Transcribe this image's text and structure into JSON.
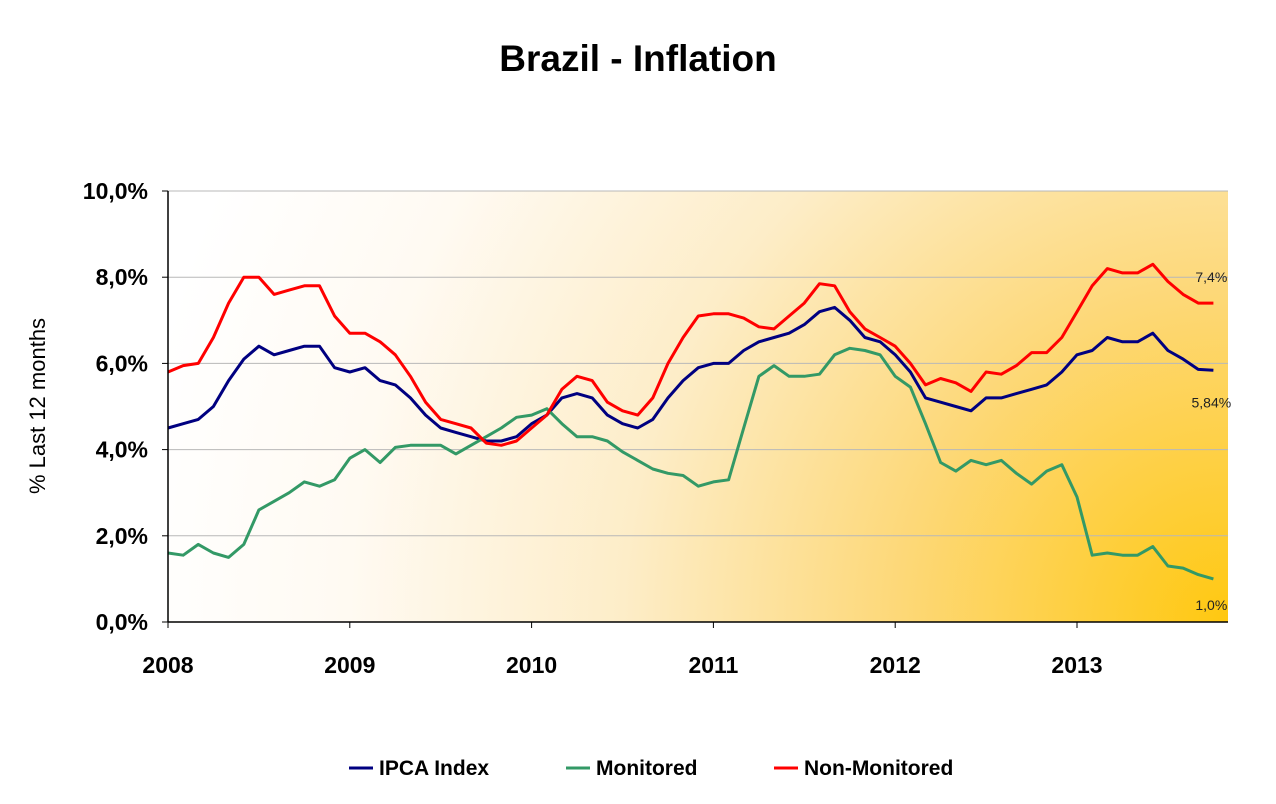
{
  "chart_data": {
    "type": "line",
    "title": "Brazil - Inflation",
    "xlabel": "",
    "ylabel": "% Last 12 months",
    "x_start": "2008-01",
    "x_end": "2013-10",
    "x_frequency": "monthly",
    "x_tick_labels": [
      "2008",
      "2009",
      "2010",
      "2011",
      "2012",
      "2013"
    ],
    "y_tick_labels": [
      "0,0%",
      "2,0%",
      "4,0%",
      "6,0%",
      "8,0%",
      "10,0%"
    ],
    "ylim": [
      0,
      10
    ],
    "grid": "horizontal",
    "legend_position": "bottom",
    "background": "gradient white to gold toward bottom-right",
    "series": [
      {
        "name": "IPCA Index",
        "color": "#000080",
        "values": [
          4.5,
          4.6,
          4.7,
          5.0,
          5.6,
          6.1,
          6.4,
          6.2,
          6.3,
          6.4,
          6.4,
          5.9,
          5.8,
          5.9,
          5.6,
          5.5,
          5.2,
          4.8,
          4.5,
          4.4,
          4.3,
          4.2,
          4.2,
          4.3,
          4.6,
          4.8,
          5.2,
          5.3,
          5.2,
          4.8,
          4.6,
          4.5,
          4.7,
          5.2,
          5.6,
          5.9,
          6.0,
          6.0,
          6.3,
          6.5,
          6.6,
          6.7,
          6.9,
          7.2,
          7.3,
          7.0,
          6.6,
          6.5,
          6.2,
          5.8,
          5.2,
          5.1,
          5.0,
          4.9,
          5.2,
          5.2,
          5.3,
          5.4,
          5.5,
          5.8,
          6.2,
          6.3,
          6.6,
          6.5,
          6.5,
          6.7,
          6.3,
          6.1,
          5.86,
          5.84
        ]
      },
      {
        "name": "Monitored",
        "color": "#339966",
        "values": [
          1.6,
          1.55,
          1.8,
          1.6,
          1.5,
          1.8,
          2.6,
          2.8,
          3.0,
          3.25,
          3.15,
          3.3,
          3.8,
          4.0,
          3.7,
          4.05,
          4.1,
          4.1,
          4.1,
          3.9,
          4.1,
          4.3,
          4.5,
          4.75,
          4.8,
          4.95,
          4.6,
          4.3,
          4.3,
          4.2,
          3.95,
          3.75,
          3.55,
          3.45,
          3.4,
          3.15,
          3.25,
          3.3,
          4.5,
          5.7,
          5.95,
          5.7,
          5.7,
          5.75,
          6.2,
          6.35,
          6.3,
          6.2,
          5.7,
          5.45,
          4.6,
          3.7,
          3.5,
          3.75,
          3.65,
          3.75,
          3.45,
          3.2,
          3.5,
          3.65,
          2.9,
          1.55,
          1.6,
          1.55,
          1.55,
          1.75,
          1.3,
          1.25,
          1.1,
          1.0
        ]
      },
      {
        "name": "Non-Monitored",
        "color": "#ff0000",
        "values": [
          5.8,
          5.95,
          6.0,
          6.6,
          7.4,
          8.0,
          8.0,
          7.6,
          7.7,
          7.8,
          7.8,
          7.1,
          6.7,
          6.7,
          6.5,
          6.2,
          5.7,
          5.1,
          4.7,
          4.6,
          4.5,
          4.15,
          4.1,
          4.2,
          4.5,
          4.8,
          5.4,
          5.7,
          5.6,
          5.1,
          4.9,
          4.8,
          5.2,
          6.0,
          6.6,
          7.1,
          7.15,
          7.15,
          7.05,
          6.85,
          6.8,
          7.1,
          7.4,
          7.85,
          7.8,
          7.2,
          6.8,
          6.6,
          6.4,
          6.0,
          5.5,
          5.65,
          5.55,
          5.35,
          5.8,
          5.75,
          5.95,
          6.25,
          6.25,
          6.6,
          7.2,
          7.8,
          8.2,
          8.1,
          8.1,
          8.3,
          7.9,
          7.6,
          7.4,
          7.4
        ]
      }
    ],
    "annotations": [
      {
        "series": "Non-Monitored",
        "text": "7,4%"
      },
      {
        "series": "IPCA Index",
        "text": "5,84%"
      },
      {
        "series": "Monitored",
        "text": "1,0%"
      }
    ]
  }
}
